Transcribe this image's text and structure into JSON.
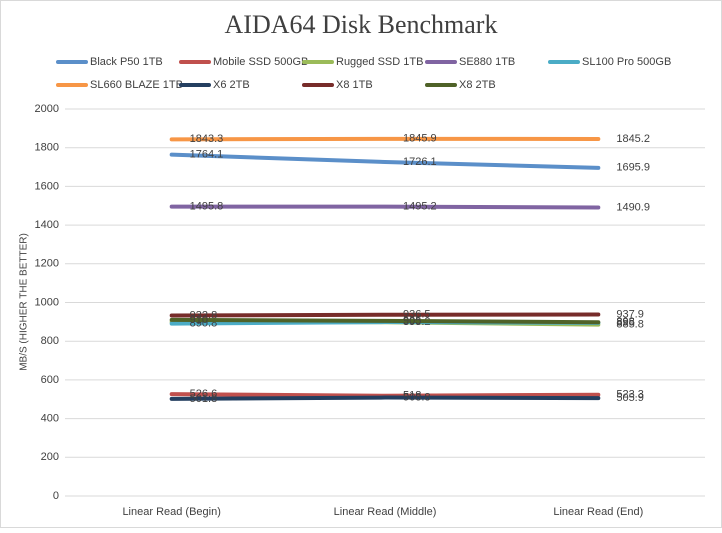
{
  "chart_data": {
    "type": "line",
    "title": "AIDA64 Disk Benchmark",
    "y_label": "MB/S (HIGHER THE BETTER)",
    "categories": [
      "Linear Read (Begin)",
      "Linear Read (Middle)",
      "Linear Read (End)"
    ],
    "series": [
      {
        "name": "Black P50 1TB",
        "color": "#5b8fc9",
        "values": [
          1764.1,
          1726.1,
          1695.9
        ]
      },
      {
        "name": "Mobile SSD 500GB",
        "color": "#c0504d",
        "values": [
          526.6,
          518.0,
          523.3
        ]
      },
      {
        "name": "Rugged SSD 1TB",
        "color": "#9bbb59",
        "values": [
          900.0,
          898.2,
          885.8
        ]
      },
      {
        "name": "SE880 1TB",
        "color": "#8064a2",
        "values": [
          1495.8,
          1495.2,
          1490.9
        ]
      },
      {
        "name": "SL100 Pro 500GB",
        "color": "#4bacc6",
        "values": [
          890.8,
          899.0,
          895.0
        ]
      },
      {
        "name": "SL660 BLAZE 1TB",
        "color": "#f79646",
        "values": [
          1843.3,
          1845.9,
          1845.2
        ]
      },
      {
        "name": "X6 2TB",
        "color": "#243f60",
        "values": [
          501.8,
          508.8,
          505.9
        ]
      },
      {
        "name": "X8 1TB",
        "color": "#772c2a",
        "values": [
          932.8,
          936.5,
          937.9
        ]
      },
      {
        "name": "X8 2TB",
        "color": "#4f6228",
        "values": [
          910.0,
          905.0,
          898.0
        ]
      }
    ],
    "ylim": [
      0,
      2000
    ],
    "yticks": [
      0,
      200,
      400,
      600,
      800,
      1000,
      1200,
      1400,
      1600,
      1800,
      2000
    ],
    "grid": true
  }
}
